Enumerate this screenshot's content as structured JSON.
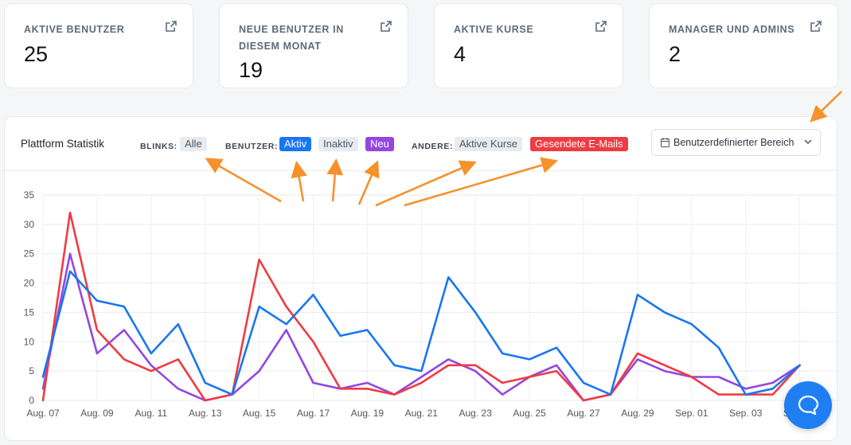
{
  "stats": [
    {
      "label": "AKTIVE BENUTZER",
      "value": "25"
    },
    {
      "label": "NEUE BENUTZER IN DIESEM MONAT",
      "value": "19"
    },
    {
      "label": "AKTIVE KURSE",
      "value": "4"
    },
    {
      "label": "MANAGER UND ADMINS",
      "value": "2"
    }
  ],
  "panel": {
    "title": "Plattform Statistik",
    "filters": {
      "blinks_label": "BLINKS:",
      "blinks_all": "Alle",
      "benutzer_label": "BENUTZER:",
      "aktiv": "Aktiv",
      "inaktiv": "Inaktiv",
      "neu": "Neu",
      "andere_label": "ANDERE:",
      "aktive_kurse": "Aktive Kurse",
      "emails": "Gesendete E-Mails"
    },
    "range_button": "Benutzerdefinierter Bereich"
  },
  "colors": {
    "blue": "#1976f2",
    "red": "#ef3b42",
    "purple": "#9347e0",
    "annotation_arrow": "#f5922b",
    "help_button": "#1f7ff2"
  },
  "icons": {
    "stat_link": "external-link-icon",
    "range": "calendar-icon",
    "range_chevron": "chevron-down-icon",
    "help": "chat-bubble-icon"
  },
  "chart_data": {
    "type": "line",
    "x": [
      "Aug. 07",
      "Aug. 08",
      "Aug. 09",
      "Aug. 10",
      "Aug. 11",
      "Aug. 12",
      "Aug. 13",
      "Aug. 14",
      "Aug. 15",
      "Aug. 16",
      "Aug. 17",
      "Aug. 18",
      "Aug. 19",
      "Aug. 20",
      "Aug. 21",
      "Aug. 22",
      "Aug. 23",
      "Aug. 24",
      "Aug. 25",
      "Aug. 26",
      "Aug. 27",
      "Aug. 28",
      "Aug. 29",
      "Aug. 30",
      "Aug. 31",
      "Sep. 01",
      "Sep. 02",
      "Sep. 03",
      "Sep. 04"
    ],
    "tick_labels": [
      "Aug. 07",
      "Aug. 09",
      "Aug. 11",
      "Aug. 13",
      "Aug. 15",
      "Aug. 17",
      "Aug. 19",
      "Aug. 21",
      "Aug. 23",
      "Aug. 25",
      "Aug. 27",
      "Aug. 29",
      "Sep. 01",
      "Sep. 03",
      "Sep. 05"
    ],
    "y_ticks": [
      "0",
      "5",
      "10",
      "15",
      "20",
      "25",
      "30",
      "35"
    ],
    "ylim": [
      0,
      35
    ],
    "grid": true,
    "series": [
      {
        "name": "Aktiv",
        "color": "#1976f2",
        "values": [
          4,
          22,
          17,
          16,
          8,
          13,
          3,
          1,
          16,
          13,
          18,
          11,
          12,
          6,
          5,
          21,
          15,
          8,
          7,
          9,
          3,
          1,
          18,
          15,
          13,
          9,
          1,
          2,
          6
        ]
      },
      {
        "name": "Gesendete E-Mails",
        "color": "#ef3b42",
        "values": [
          0,
          32,
          12,
          7,
          5,
          7,
          0,
          1,
          24,
          16,
          10,
          2,
          2,
          1,
          3,
          6,
          6,
          3,
          4,
          5,
          0,
          1,
          8,
          6,
          4,
          1,
          1,
          1,
          6
        ]
      },
      {
        "name": "Neu",
        "color": "#9347e0",
        "values": [
          2,
          25,
          8,
          12,
          6,
          2,
          0,
          1,
          5,
          12,
          3,
          2,
          3,
          1,
          4,
          7,
          5,
          1,
          4,
          6,
          0,
          1,
          7,
          5,
          4,
          4,
          2,
          3,
          6
        ]
      }
    ]
  }
}
